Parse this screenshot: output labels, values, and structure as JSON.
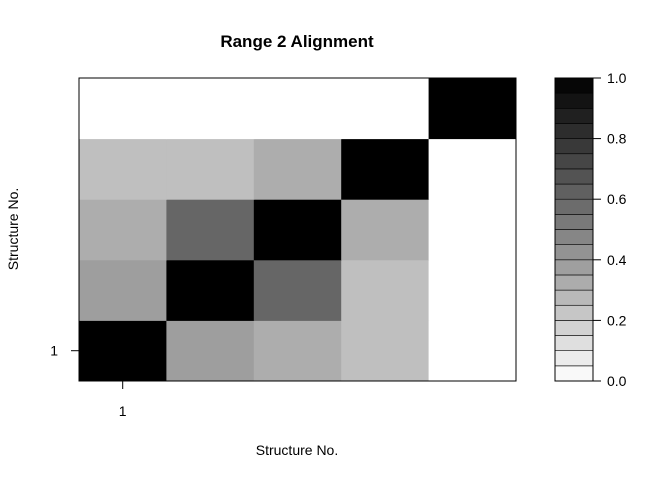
{
  "chart_data": {
    "type": "heatmap",
    "title": "Range 2 Alignment",
    "xlabel": "Structure No.",
    "ylabel": "Structure No.",
    "x_tick_labels": [
      "1"
    ],
    "y_tick_labels": [
      "1"
    ],
    "rows": 5,
    "cols": 5,
    "values": [
      [
        1.0,
        0.38,
        0.32,
        0.25,
        0.0
      ],
      [
        0.38,
        1.0,
        0.6,
        0.25,
        0.0
      ],
      [
        0.32,
        0.6,
        1.0,
        0.32,
        0.0
      ],
      [
        0.25,
        0.25,
        0.32,
        1.0,
        0.0
      ],
      [
        0.0,
        0.0,
        0.0,
        0.0,
        1.0
      ]
    ],
    "colorbar": {
      "range": [
        0.0,
        1.0
      ],
      "levels": 20,
      "tick_labels": [
        "0.0",
        "0.2",
        "0.4",
        "0.6",
        "0.8",
        "1.0"
      ],
      "tick_values": [
        0.0,
        0.2,
        0.4,
        0.6,
        0.8,
        1.0
      ],
      "colors": [
        "#ffffff",
        "#000000"
      ]
    }
  }
}
